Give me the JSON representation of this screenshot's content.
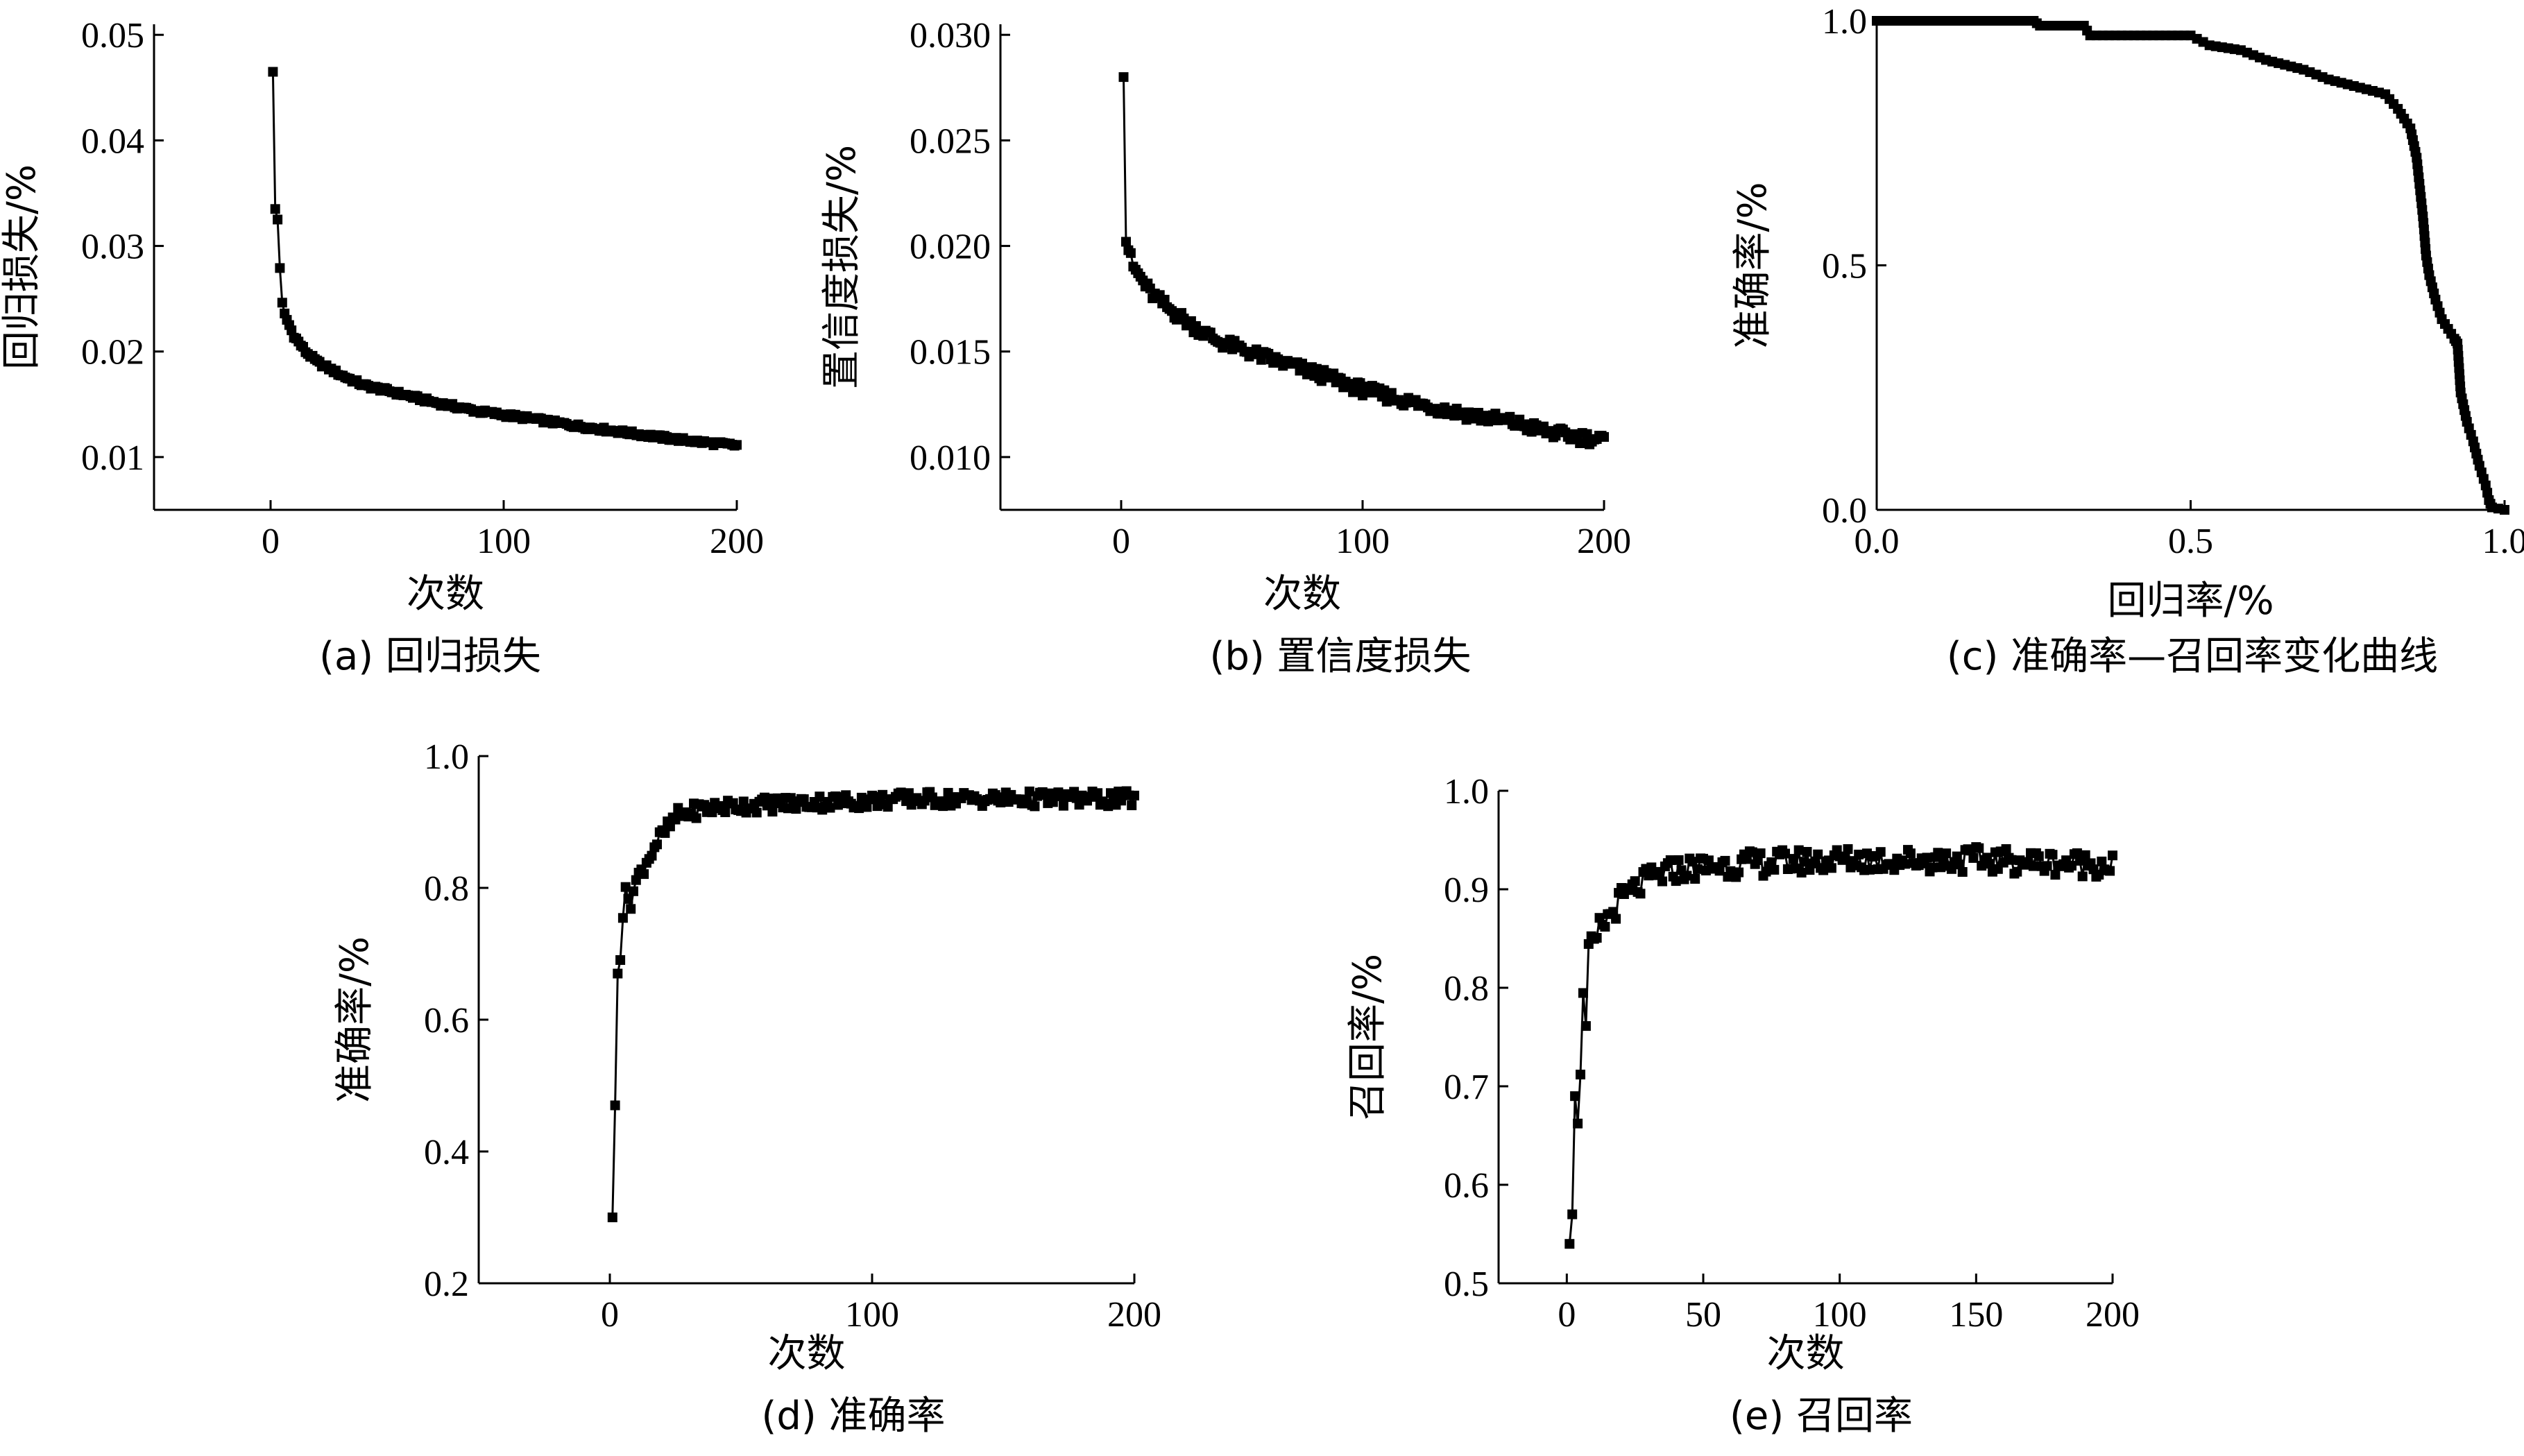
{
  "chart_data": [
    {
      "id": "a",
      "type": "scatter",
      "caption": "(a) 回归损失",
      "xlabel": "次数",
      "ylabel": "回归损失/%",
      "xlim": [
        -50,
        200
      ],
      "ylim": [
        0.005,
        0.051
      ],
      "xticks": [
        0,
        100,
        200
      ],
      "yticks": [
        0.01,
        0.02,
        0.03,
        0.04,
        0.05
      ],
      "xtick_labels": [
        "0",
        "100",
        "200"
      ],
      "ytick_labels": [
        "0.01",
        "0.02",
        "0.03",
        "0.04",
        "0.05"
      ],
      "curve": {
        "kind": "decay",
        "x_start": 1,
        "x_end": 200,
        "y0": 0.0465,
        "points": [
          [
            1,
            0.0465
          ],
          [
            2,
            0.0335
          ],
          [
            3,
            0.0325
          ],
          [
            4,
            0.028
          ],
          [
            5,
            0.0245
          ],
          [
            6,
            0.0235
          ],
          [
            8,
            0.0225
          ],
          [
            10,
            0.0215
          ],
          [
            15,
            0.02
          ],
          [
            20,
            0.019
          ],
          [
            30,
            0.0178
          ],
          [
            40,
            0.0168
          ],
          [
            50,
            0.0163
          ],
          [
            70,
            0.0152
          ],
          [
            90,
            0.0143
          ],
          [
            110,
            0.0137
          ],
          [
            130,
            0.013
          ],
          [
            150,
            0.0124
          ],
          [
            170,
            0.0118
          ],
          [
            190,
            0.0113
          ],
          [
            200,
            0.0111
          ]
        ],
        "noise": 0.0002
      }
    },
    {
      "id": "b",
      "type": "scatter",
      "caption": "(b) 置信度损失",
      "xlabel": "次数",
      "ylabel": "置信度损失/%",
      "xlim": [
        -50,
        200
      ],
      "ylim": [
        0.0075,
        0.0305
      ],
      "xticks": [
        0,
        100,
        200
      ],
      "yticks": [
        0.01,
        0.015,
        0.02,
        0.025,
        0.03
      ],
      "xtick_labels": [
        "0",
        "100",
        "200"
      ],
      "ytick_labels": [
        "0.010",
        "0.015",
        "0.020",
        "0.025",
        "0.030"
      ],
      "curve": {
        "kind": "decay",
        "x_start": 1,
        "x_end": 200,
        "points": [
          [
            1,
            0.028
          ],
          [
            2,
            0.0202
          ],
          [
            3,
            0.0198
          ],
          [
            5,
            0.019
          ],
          [
            8,
            0.0185
          ],
          [
            12,
            0.0178
          ],
          [
            20,
            0.017
          ],
          [
            30,
            0.0162
          ],
          [
            40,
            0.0155
          ],
          [
            60,
            0.0147
          ],
          [
            80,
            0.014
          ],
          [
            100,
            0.0132
          ],
          [
            120,
            0.0126
          ],
          [
            140,
            0.0121
          ],
          [
            160,
            0.0117
          ],
          [
            180,
            0.0111
          ],
          [
            200,
            0.0108
          ]
        ],
        "noise": 0.0003
      }
    },
    {
      "id": "c",
      "type": "line",
      "caption": "(c) 准确率—召回率变化曲线",
      "xlabel": "回归率/%",
      "ylabel": "准确率/%",
      "xlim": [
        0,
        1
      ],
      "ylim": [
        0,
        1
      ],
      "xticks": [
        0,
        0.5,
        1
      ],
      "yticks": [
        0,
        0.5,
        1
      ],
      "xtick_labels": [
        "0.0",
        "0.5",
        "1.0"
      ],
      "ytick_labels": [
        "0.0",
        "0.5",
        "1.0"
      ],
      "curve": {
        "kind": "pr",
        "points": [
          [
            0,
            1
          ],
          [
            0.25,
            1
          ],
          [
            0.26,
            0.99
          ],
          [
            0.33,
            0.99
          ],
          [
            0.34,
            0.97
          ],
          [
            0.5,
            0.97
          ],
          [
            0.53,
            0.95
          ],
          [
            0.58,
            0.94
          ],
          [
            0.62,
            0.92
          ],
          [
            0.68,
            0.9
          ],
          [
            0.72,
            0.88
          ],
          [
            0.78,
            0.86
          ],
          [
            0.81,
            0.85
          ],
          [
            0.83,
            0.82
          ],
          [
            0.85,
            0.78
          ],
          [
            0.86,
            0.72
          ],
          [
            0.87,
            0.6
          ],
          [
            0.875,
            0.52
          ],
          [
            0.88,
            0.48
          ],
          [
            0.89,
            0.43
          ],
          [
            0.9,
            0.39
          ],
          [
            0.91,
            0.37
          ],
          [
            0.92,
            0.35
          ],
          [
            0.925,
            0.34
          ],
          [
            0.93,
            0.24
          ],
          [
            0.94,
            0.18
          ],
          [
            0.95,
            0.14
          ],
          [
            0.96,
            0.09
          ],
          [
            0.97,
            0.05
          ],
          [
            0.975,
            0.02
          ],
          [
            0.98,
            0.005
          ],
          [
            1.0,
            0.0
          ]
        ]
      }
    },
    {
      "id": "d",
      "type": "scatter",
      "caption": "(d) 准确率",
      "xlabel": "次数",
      "ylabel": "准确率/%",
      "xlim": [
        -50,
        200
      ],
      "ylim": [
        0.2,
        1.0
      ],
      "xticks": [
        0,
        100,
        200
      ],
      "yticks": [
        0.2,
        0.4,
        0.6,
        0.8,
        1.0
      ],
      "xtick_labels": [
        "0",
        "100",
        "200"
      ],
      "ytick_labels": [
        "0.2",
        "0.4",
        "0.6",
        "0.8",
        "1.0"
      ],
      "curve": {
        "kind": "rise",
        "x_start": 1,
        "x_end": 200,
        "points": [
          [
            1,
            0.3
          ],
          [
            2,
            0.47
          ],
          [
            3,
            0.67
          ],
          [
            4,
            0.7
          ],
          [
            5,
            0.76
          ],
          [
            6,
            0.79
          ],
          [
            8,
            0.78
          ],
          [
            10,
            0.81
          ],
          [
            14,
            0.84
          ],
          [
            18,
            0.87
          ],
          [
            22,
            0.89
          ],
          [
            26,
            0.91
          ],
          [
            35,
            0.92
          ],
          [
            50,
            0.925
          ],
          [
            80,
            0.93
          ],
          [
            120,
            0.935
          ],
          [
            160,
            0.935
          ],
          [
            200,
            0.935
          ]
        ],
        "noise": 0.012
      }
    },
    {
      "id": "e",
      "type": "scatter",
      "caption": "(e) 召回率",
      "xlabel": "次数",
      "ylabel": "召回率/%",
      "xlim": [
        -25,
        200
      ],
      "ylim": [
        0.5,
        1.0
      ],
      "xticks": [
        0,
        50,
        100,
        150,
        200
      ],
      "yticks": [
        0.5,
        0.6,
        0.7,
        0.8,
        0.9,
        1.0
      ],
      "xtick_labels": [
        "0",
        "50",
        "100",
        "150",
        "200"
      ],
      "ytick_labels": [
        "0.5",
        "0.6",
        "0.7",
        "0.8",
        "0.9",
        "1.0"
      ],
      "curve": {
        "kind": "rise",
        "x_start": 1,
        "x_end": 200,
        "points": [
          [
            1,
            0.54
          ],
          [
            2,
            0.57
          ],
          [
            3,
            0.69
          ],
          [
            4,
            0.67
          ],
          [
            5,
            0.72
          ],
          [
            6,
            0.79
          ],
          [
            7,
            0.75
          ],
          [
            8,
            0.84
          ],
          [
            10,
            0.84
          ],
          [
            12,
            0.86
          ],
          [
            15,
            0.87
          ],
          [
            20,
            0.89
          ],
          [
            25,
            0.9
          ],
          [
            30,
            0.91
          ],
          [
            40,
            0.92
          ],
          [
            60,
            0.925
          ],
          [
            100,
            0.93
          ],
          [
            150,
            0.93
          ],
          [
            200,
            0.925
          ]
        ],
        "noise": 0.013
      }
    }
  ]
}
